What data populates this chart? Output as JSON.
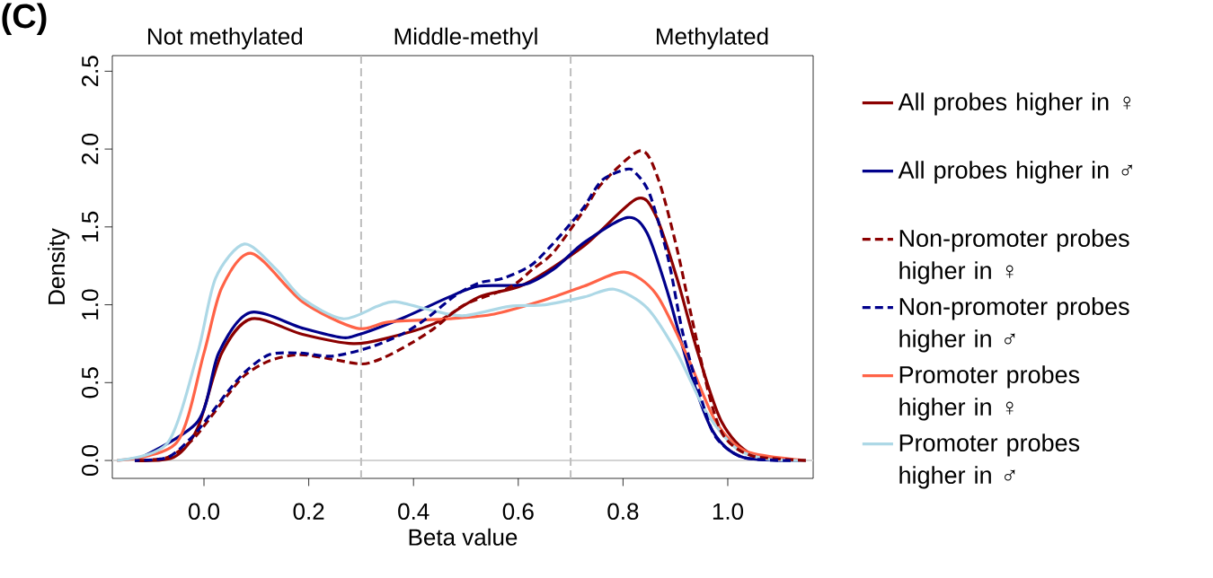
{
  "chart_data": {
    "type": "line",
    "xlabel": "Beta value",
    "ylabel": "Density",
    "annotations": [
      "(C)",
      "Not methylated",
      "Middle-methyl",
      "Methylated"
    ],
    "xlim": [
      -0.175,
      1.163
    ],
    "ylim": [
      -0.115,
      2.6
    ],
    "xticks": [
      {
        "value": 0,
        "label": "0.0"
      },
      {
        "value": 0.2,
        "label": "0.2"
      },
      {
        "value": 0.4,
        "label": "0.4"
      },
      {
        "value": 0.6,
        "label": "0.6"
      },
      {
        "value": 0.8,
        "label": "0.8"
      },
      {
        "value": 1.0,
        "label": "1.0"
      }
    ],
    "yticks": [
      {
        "value": 0,
        "label": "0.0"
      },
      {
        "value": 0.5,
        "label": "0.5"
      },
      {
        "value": 1.0,
        "label": "1.0"
      },
      {
        "value": 1.5,
        "label": "1.5"
      },
      {
        "value": 2.0,
        "label": "2.0"
      },
      {
        "value": 2.5,
        "label": "2.5"
      }
    ],
    "grid": false,
    "legend": "right",
    "line_style": "solid",
    "ref_lines": [
      {
        "axis": "y",
        "value": 0,
        "color": "#d3d3d3",
        "line_style": "solid"
      },
      {
        "axis": "x",
        "value": 0.3,
        "color": "#bebebe",
        "line_style": "dashed"
      },
      {
        "axis": "x",
        "value": 0.7,
        "color": "#bebebe",
        "line_style": "dashed"
      }
    ],
    "series": [
      {
        "name": "All probes higher in ♀",
        "color": "#8b0000",
        "x": [
          -0.132,
          -0.058,
          -0.012,
          0.034,
          0.091,
          0.188,
          0.285,
          0.354,
          0.44,
          0.525,
          0.611,
          0.726,
          0.826,
          0.863,
          0.903,
          0.943,
          0.988,
          1.046,
          1.149
        ],
        "values": [
          0,
          0.02,
          0.21,
          0.69,
          0.91,
          0.81,
          0.75,
          0.79,
          0.88,
          1.05,
          1.13,
          1.38,
          1.68,
          1.57,
          1.17,
          0.69,
          0.25,
          0.04,
          0
        ]
      },
      {
        "name": "All probes higher in ♂",
        "color": "#00008b",
        "x": [
          -0.132,
          -0.012,
          0.028,
          0.088,
          0.188,
          0.262,
          0.297,
          0.383,
          0.468,
          0.525,
          0.611,
          0.668,
          0.726,
          0.808,
          0.846,
          0.886,
          0.926,
          0.971,
          1.029,
          1.149
        ],
        "values": [
          0,
          0.25,
          0.69,
          0.95,
          0.85,
          0.79,
          0.81,
          0.92,
          1.05,
          1.12,
          1.13,
          1.23,
          1.4,
          1.56,
          1.46,
          1.07,
          0.59,
          0.19,
          0.02,
          0
        ]
      },
      {
        "name": "Non-promoter probes higher in ♀",
        "color": "#8b0000",
        "line_style": "dashed",
        "x": [
          -0.132,
          -0.069,
          -0.023,
          0.011,
          0.045,
          0.079,
          0.125,
          0.182,
          0.245,
          0.302,
          0.343,
          0.394,
          0.44,
          0.497,
          0.583,
          0.628,
          0.668,
          0.726,
          0.76,
          0.834,
          0.868,
          0.903,
          0.931,
          0.966,
          0.994,
          1.046,
          1.149
        ],
        "values": [
          0,
          0.02,
          0.13,
          0.27,
          0.42,
          0.55,
          0.64,
          0.68,
          0.65,
          0.62,
          0.66,
          0.75,
          0.85,
          1.0,
          1.11,
          1.23,
          1.34,
          1.61,
          1.78,
          1.99,
          1.8,
          1.36,
          0.92,
          0.4,
          0.15,
          0.03,
          0
        ]
      },
      {
        "name": "Non-promoter probes higher in ♂",
        "color": "#00008b",
        "line_style": "dashed",
        "x": [
          -0.132,
          -0.069,
          -0.023,
          0.011,
          0.045,
          0.079,
          0.125,
          0.182,
          0.245,
          0.32,
          0.383,
          0.428,
          0.48,
          0.525,
          0.571,
          0.623,
          0.663,
          0.697,
          0.726,
          0.76,
          0.806,
          0.823,
          0.851,
          0.886,
          0.914,
          0.949,
          0.977,
          1.029,
          1.12
        ],
        "values": [
          0,
          0.02,
          0.15,
          0.29,
          0.44,
          0.57,
          0.68,
          0.69,
          0.67,
          0.73,
          0.82,
          0.92,
          1.06,
          1.14,
          1.17,
          1.25,
          1.38,
          1.51,
          1.63,
          1.8,
          1.87,
          1.85,
          1.71,
          1.3,
          0.82,
          0.4,
          0.15,
          0.02,
          0
        ]
      },
      {
        "name": "Promoter probes higher in ♀",
        "color": "#ff6347",
        "x": [
          -0.166,
          -0.052,
          0,
          0.034,
          0.091,
          0.188,
          0.291,
          0.354,
          0.468,
          0.554,
          0.64,
          0.726,
          0.803,
          0.863,
          0.92,
          0.977,
          1.034,
          1.149
        ],
        "values": [
          0,
          0.115,
          0.69,
          1.11,
          1.33,
          1.02,
          0.85,
          0.89,
          0.91,
          0.94,
          1.02,
          1.12,
          1.21,
          1.07,
          0.69,
          0.25,
          0.06,
          0
        ]
      },
      {
        "name": "Promoter probes higher in ♂",
        "color": "#add8e6",
        "x": [
          -0.166,
          -0.069,
          -0.012,
          0.022,
          0.077,
          0.137,
          0.188,
          0.265,
          0.331,
          0.365,
          0.44,
          0.497,
          0.583,
          0.651,
          0.726,
          0.783,
          0.846,
          0.903,
          0.96,
          1.017,
          1.074,
          1.149
        ],
        "values": [
          0,
          0.115,
          0.69,
          1.17,
          1.39,
          1.23,
          1.04,
          0.91,
          0.99,
          1.02,
          0.96,
          0.93,
          0.99,
          1.0,
          1.05,
          1.1,
          0.98,
          0.69,
          0.305,
          0.075,
          0.01,
          0
        ]
      }
    ]
  }
}
